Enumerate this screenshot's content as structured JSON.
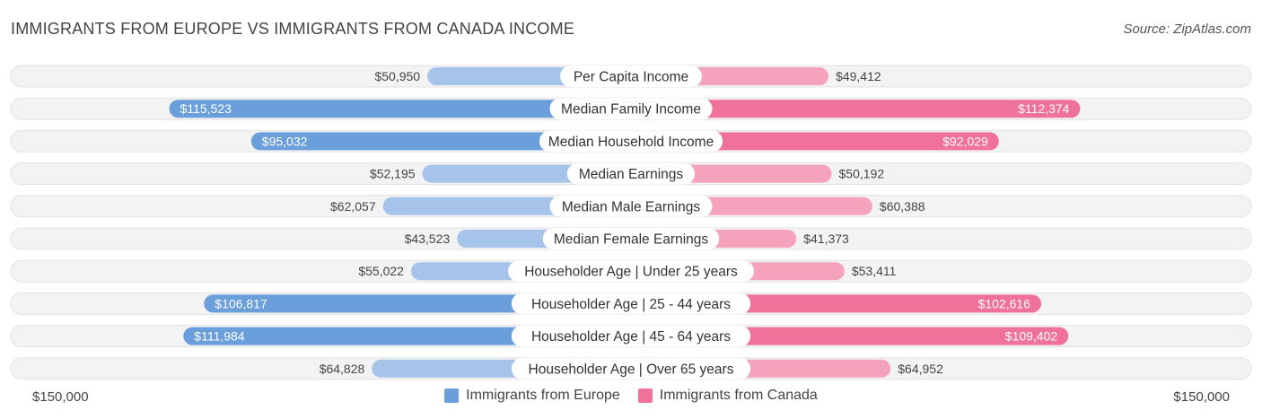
{
  "title": "IMMIGRANTS FROM EUROPE VS IMMIGRANTS FROM CANADA INCOME",
  "source": "Source: ZipAtlas.com",
  "colors": {
    "europe_light": "#a6c4ea",
    "europe_dark": "#6a9fdc",
    "canada_light": "#f5a2bd",
    "canada_dark": "#f0719a",
    "row_bg": "#f0f0f0"
  },
  "axis": {
    "left_label": "$150,000",
    "right_label": "$150,000"
  },
  "chart_data": {
    "type": "bar",
    "orientation": "diverging-horizontal",
    "xlim": [
      -150000,
      150000
    ],
    "categories": [
      "Per Capita Income",
      "Median Family Income",
      "Median Household Income",
      "Median Earnings",
      "Median Male Earnings",
      "Median Female Earnings",
      "Householder Age | Under 25 years",
      "Householder Age | 25 - 44 years",
      "Householder Age | 45 - 64 years",
      "Householder Age | Over 65 years"
    ],
    "series": [
      {
        "name": "Immigrants from Europe",
        "values": [
          50950,
          115523,
          95032,
          52195,
          62057,
          43523,
          55022,
          106817,
          111984,
          64828
        ],
        "labels": [
          "$50,950",
          "$115,523",
          "$95,032",
          "$52,195",
          "$62,057",
          "$43,523",
          "$55,022",
          "$106,817",
          "$111,984",
          "$64,828"
        ]
      },
      {
        "name": "Immigrants from Canada",
        "values": [
          49412,
          112374,
          92029,
          50192,
          60388,
          41373,
          53411,
          102616,
          109402,
          64952
        ],
        "labels": [
          "$49,412",
          "$112,374",
          "$92,029",
          "$50,192",
          "$60,388",
          "$41,373",
          "$53,411",
          "$102,616",
          "$109,402",
          "$64,952"
        ]
      }
    ]
  }
}
